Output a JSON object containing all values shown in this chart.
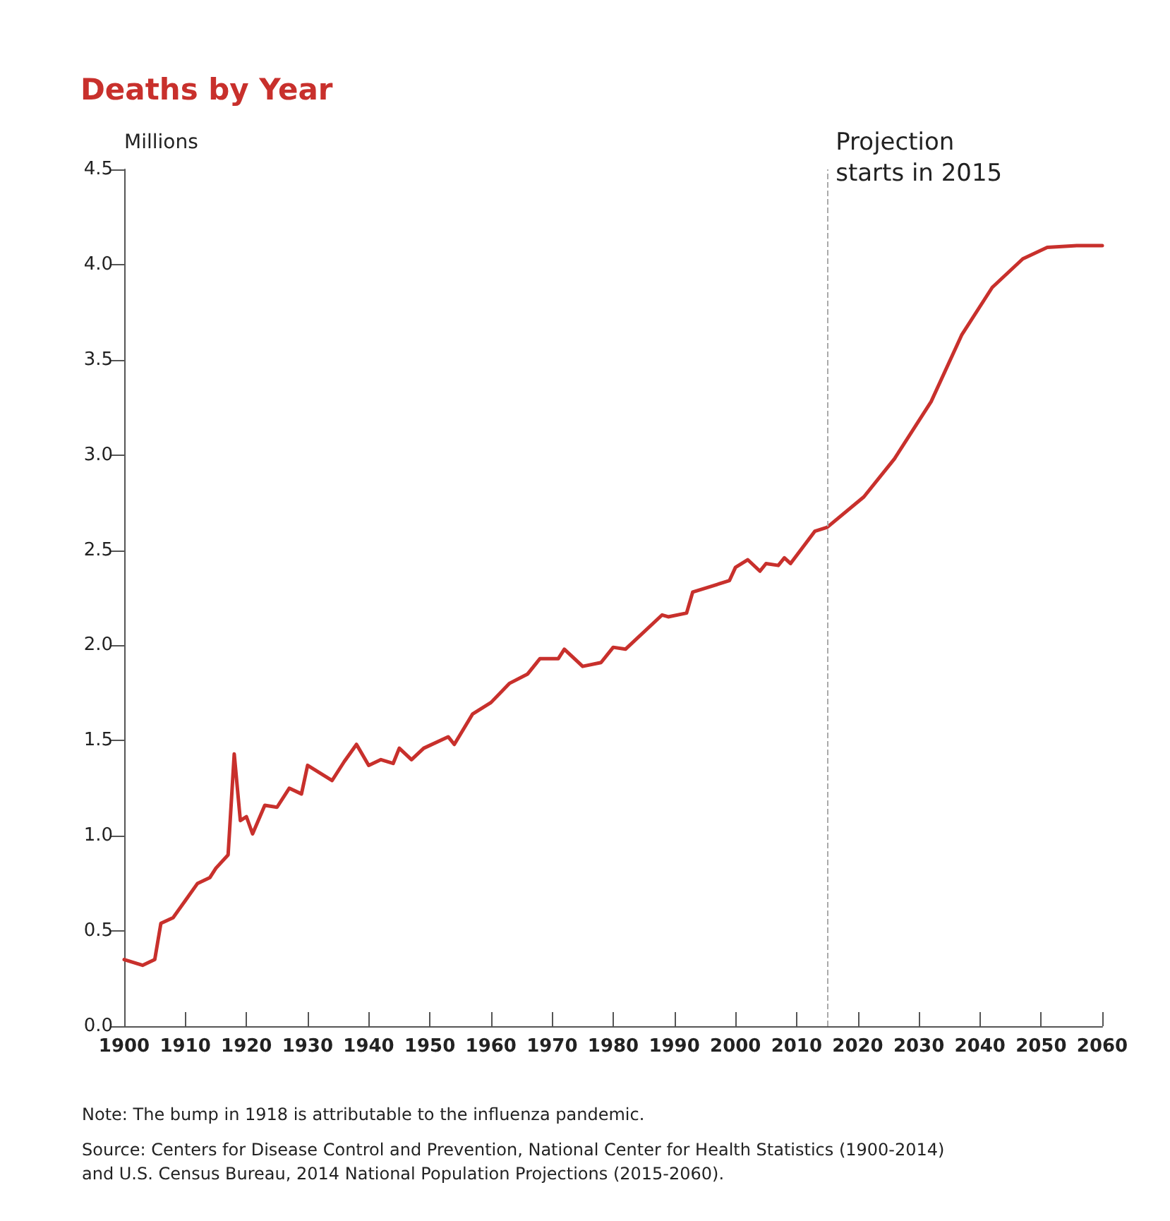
{
  "chart_data": {
    "type": "line",
    "title": "Deaths by Year",
    "ylabel": "Millions",
    "x": [
      1900,
      1903,
      1905,
      1906,
      1908,
      1910,
      1912,
      1914,
      1915,
      1917,
      1918,
      1919,
      1920,
      1921,
      1923,
      1925,
      1927,
      1929,
      1930,
      1932,
      1934,
      1936,
      1938,
      1940,
      1942,
      1944,
      1945,
      1947,
      1949,
      1953,
      1954,
      1957,
      1960,
      1963,
      1966,
      1968,
      1971,
      1972,
      1975,
      1978,
      1980,
      1982,
      1988,
      1989,
      1992,
      1993,
      1996,
      1999,
      2000,
      2002,
      2004,
      2005,
      2007,
      2008,
      2009,
      2013,
      2015,
      2021,
      2026,
      2032,
      2037,
      2042,
      2047,
      2051,
      2056,
      2060
    ],
    "series": [
      {
        "color": "#c8302c",
        "values": [
          0.35,
          0.32,
          0.35,
          0.54,
          0.57,
          0.66,
          0.75,
          0.78,
          0.83,
          0.9,
          1.43,
          1.08,
          1.1,
          1.01,
          1.16,
          1.15,
          1.25,
          1.22,
          1.37,
          1.33,
          1.29,
          1.39,
          1.48,
          1.37,
          1.4,
          1.38,
          1.46,
          1.4,
          1.46,
          1.52,
          1.48,
          1.64,
          1.7,
          1.8,
          1.85,
          1.93,
          1.93,
          1.98,
          1.89,
          1.91,
          1.99,
          1.98,
          2.16,
          2.15,
          2.17,
          2.28,
          2.31,
          2.34,
          2.41,
          2.45,
          2.39,
          2.43,
          2.42,
          2.46,
          2.43,
          2.6,
          2.62,
          2.78,
          2.98,
          3.28,
          3.63,
          3.88,
          4.03,
          4.09,
          4.1,
          4.1
        ]
      }
    ],
    "xlim": [
      1900,
      2060
    ],
    "xticks": [
      1900,
      1910,
      1920,
      1930,
      1940,
      1950,
      1960,
      1970,
      1980,
      1990,
      2000,
      2010,
      2020,
      2030,
      2040,
      2050,
      2060
    ],
    "ylim": [
      0,
      4.5
    ],
    "yticks": [
      {
        "value": 0,
        "label": "0.0"
      },
      0.5,
      {
        "value": 1,
        "label": "1.0"
      },
      1.5,
      {
        "value": 2,
        "label": "2.0"
      },
      2.5,
      {
        "value": 3,
        "label": "3.0"
      },
      3.5,
      {
        "value": 4,
        "label": "4.0"
      },
      4.5
    ],
    "grid": false,
    "marker": "none",
    "line_style": "solid",
    "ref_lines": [
      {
        "axis": "x",
        "value": 2015,
        "label": "Projection\nstarts in 2015",
        "color": "#aaaaaa",
        "line_style": "dashed"
      }
    ],
    "annotations": [
      "Note: The bump in 1918 is attributable to the influenza pandemic.",
      "Source: Centers for Disease Control and Prevention, National Center for Health Statistics (1900-2014)\nand U.S. Census Bureau, 2014 National Population Projections (2015-2060)."
    ]
  }
}
